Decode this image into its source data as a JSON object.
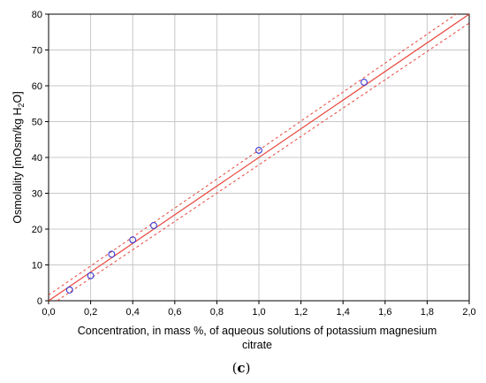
{
  "chart_data": {
    "type": "scatter",
    "x_values": [
      0.1,
      0.2,
      0.3,
      0.4,
      0.5,
      1.0,
      1.5
    ],
    "y_values": [
      3,
      7,
      13,
      17,
      21,
      42,
      61
    ],
    "fit_line": {
      "x": [
        0.0,
        2.0
      ],
      "y": [
        0.0,
        80.0
      ]
    },
    "confidence_upper": {
      "x": [
        0.0,
        2.0
      ],
      "y": [
        1.6,
        82.5
      ]
    },
    "confidence_lower": {
      "x": [
        0.0,
        2.0
      ],
      "y": [
        -1.6,
        77.5
      ]
    },
    "x_ticks": [
      "0,0",
      "0,2",
      "0,4",
      "0,6",
      "0,8",
      "1,0",
      "1,2",
      "1,4",
      "1,6",
      "1,8",
      "2,0"
    ],
    "y_ticks": [
      "0",
      "10",
      "20",
      "30",
      "40",
      "50",
      "60",
      "70",
      "80"
    ],
    "xlim": [
      0.0,
      2.0
    ],
    "ylim": [
      0,
      80
    ],
    "xlabel_line1": "Concentration, in mass %, of aqueous solutions of potassium magnesium",
    "xlabel_line2": "citrate",
    "ylabel_prefix": "Osmolality [mOsm/kg H",
    "ylabel_subscript": "2",
    "ylabel_suffix": "O]",
    "panel_label_open": "(",
    "panel_label_letter": "c",
    "panel_label_close": ")",
    "grid": true,
    "colors": {
      "fit": "#e8463c",
      "confidence": "#e8463c",
      "points": "#3a3ad6",
      "grid": "#c8c8c8"
    }
  }
}
